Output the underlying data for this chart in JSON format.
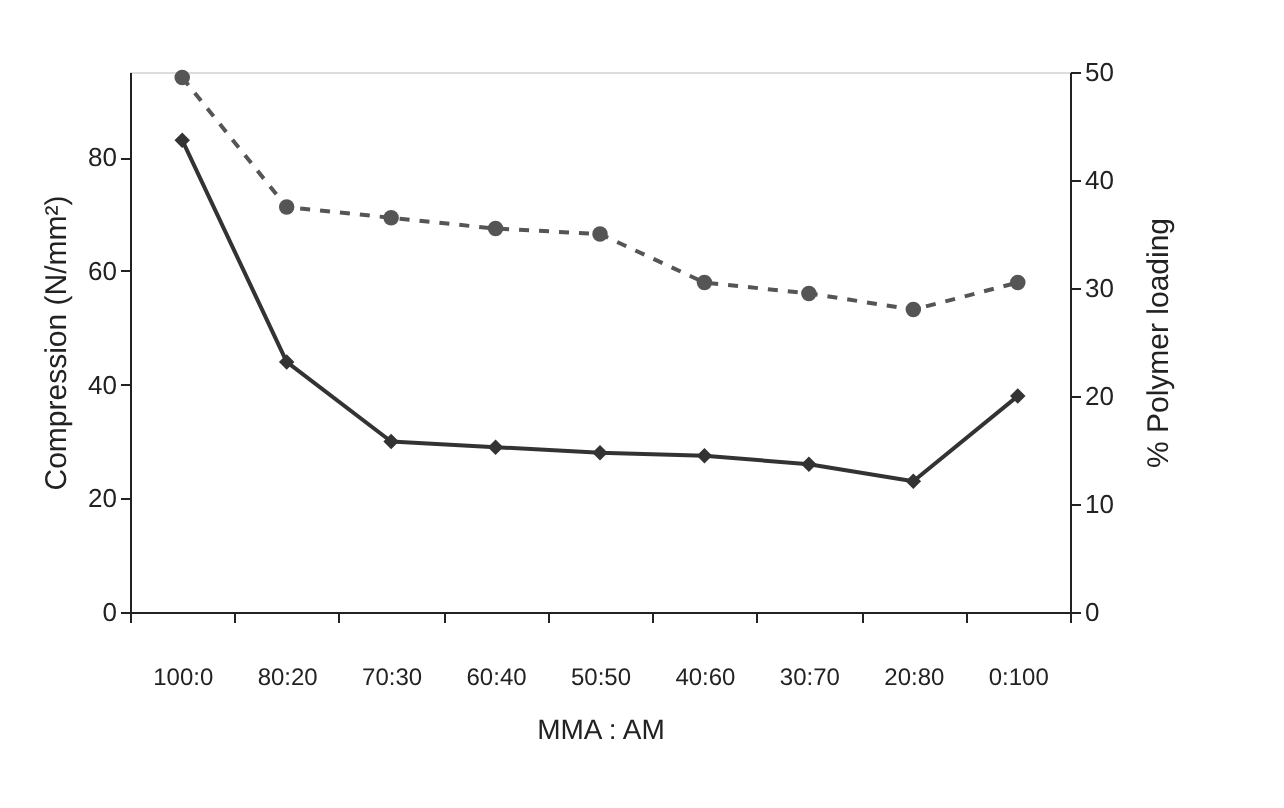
{
  "chart_data": {
    "type": "line",
    "xlabel": "MMA : AM",
    "ylabel": "Compression (N/mm²)",
    "y2label": "% Polymer loading",
    "categories": [
      "100:0",
      "80:20",
      "70:30",
      "60:40",
      "50:50",
      "40:60",
      "30:70",
      "20:80",
      "0:100"
    ],
    "series": [
      {
        "color": "#333333",
        "marker": "diamond",
        "line_style": "solid",
        "values": [
          83,
          44,
          30,
          29,
          28,
          27.5,
          26,
          23,
          38
        ]
      },
      {
        "color": "#555555",
        "marker": "circle",
        "line_style": "dashed",
        "axis": "y2",
        "values": [
          49.5,
          37.5,
          36.5,
          35.5,
          35,
          30.5,
          29.5,
          28,
          30.5
        ]
      }
    ],
    "ylim": [
      0,
      95
    ],
    "yticks": [
      0,
      20,
      40,
      60,
      80
    ],
    "y2lim": [
      0,
      50
    ],
    "y2ticks": [
      0,
      10,
      20,
      30,
      40,
      50
    ]
  }
}
